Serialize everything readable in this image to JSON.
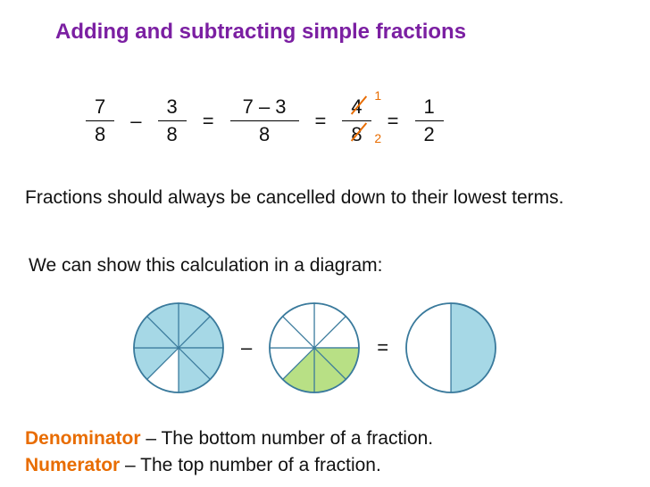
{
  "title": "Adding and subtracting simple fractions",
  "equation": {
    "f1": {
      "num": "7",
      "den": "8"
    },
    "op1": "–",
    "f2": {
      "num": "3",
      "den": "8"
    },
    "eq1": "=",
    "f3": {
      "num": "7 – 3",
      "den": "8"
    },
    "eq2": "=",
    "f4": {
      "num": "4",
      "den": "8",
      "cancelled_num_to": "1",
      "cancelled_den_to": "2"
    },
    "eq3": "=",
    "f5": {
      "num": "1",
      "den": "2"
    },
    "cancel_color": "#e86c00"
  },
  "text1": "Fractions should always be cancelled down to their lowest terms.",
  "text2": "We can show this calculation in a diagram:",
  "diagrams": {
    "circle_stroke": "#3a7a9c",
    "shade_blue": "#a6d8e6",
    "shade_green": "#b8e085",
    "shade_white": "#ffffff",
    "radius": 50,
    "op_minus": "–",
    "op_equals": "=",
    "circle1": {
      "slices": 8,
      "fills": [
        "blue",
        "blue",
        "blue",
        "blue",
        "white",
        "blue",
        "blue",
        "blue"
      ]
    },
    "circle2": {
      "slices": 8,
      "fills": [
        "white",
        "white",
        "green",
        "green",
        "green",
        "white",
        "white",
        "white"
      ]
    },
    "circle3": {
      "slices": 2,
      "fills": [
        "blue",
        "white"
      ]
    }
  },
  "defs": {
    "denominator_term": "Denominator",
    "denominator_text": " – The bottom number of a fraction.",
    "numerator_term": "Numerator",
    "numerator_text": " – The top number of a fraction."
  }
}
